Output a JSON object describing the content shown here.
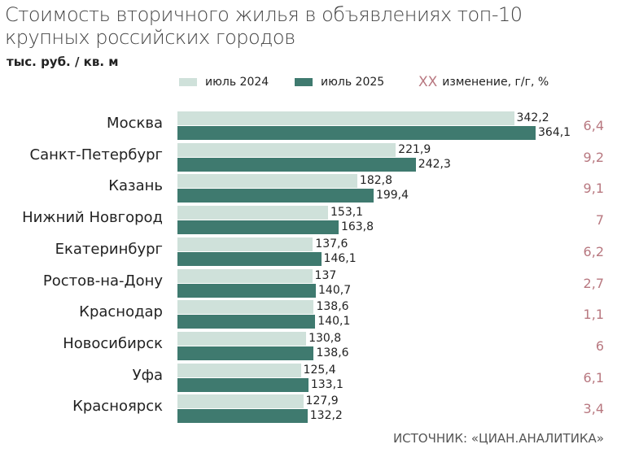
{
  "chart_data": {
    "type": "bar",
    "orientation": "horizontal",
    "title_line1": "Стоимость вторичного жилья в объявлениях топ-10",
    "title_line2": "крупных российских городов",
    "unit": "тыс. руб. / кв. м",
    "categories": [
      "Москва",
      "Санкт-Петербург",
      "Казань",
      "Нижний Новгород",
      "Екатеринбург",
      "Ростов-на-Дону",
      "Краснодар",
      "Новосибирск",
      "Уфа",
      "Красноярск"
    ],
    "series": [
      {
        "name": "июль 2024",
        "color": "#cfe1da",
        "values": [
          "342,2",
          "221,9",
          "182,8",
          "153,1",
          "137,6",
          "137",
          "138,6",
          "130,8",
          "125,4",
          "127,9"
        ]
      },
      {
        "name": "июль 2025",
        "color": "#3f7a6f",
        "values": [
          "364,1",
          "242,3",
          "199,4",
          "163,8",
          "146,1",
          "140,7",
          "140,1",
          "138,6",
          "133,1",
          "132,2"
        ]
      }
    ],
    "change": {
      "legend_marker": "XX",
      "label": "изменение, г/г, %",
      "color": "#b87880",
      "values": [
        "6,4",
        "9,2",
        "9,1",
        "7",
        "6,2",
        "2,7",
        "1,1",
        "6",
        "6,1",
        "3,4"
      ]
    },
    "source": "ИСТОЧНИК: «ЦИАН.АНАЛИТИКА»"
  }
}
